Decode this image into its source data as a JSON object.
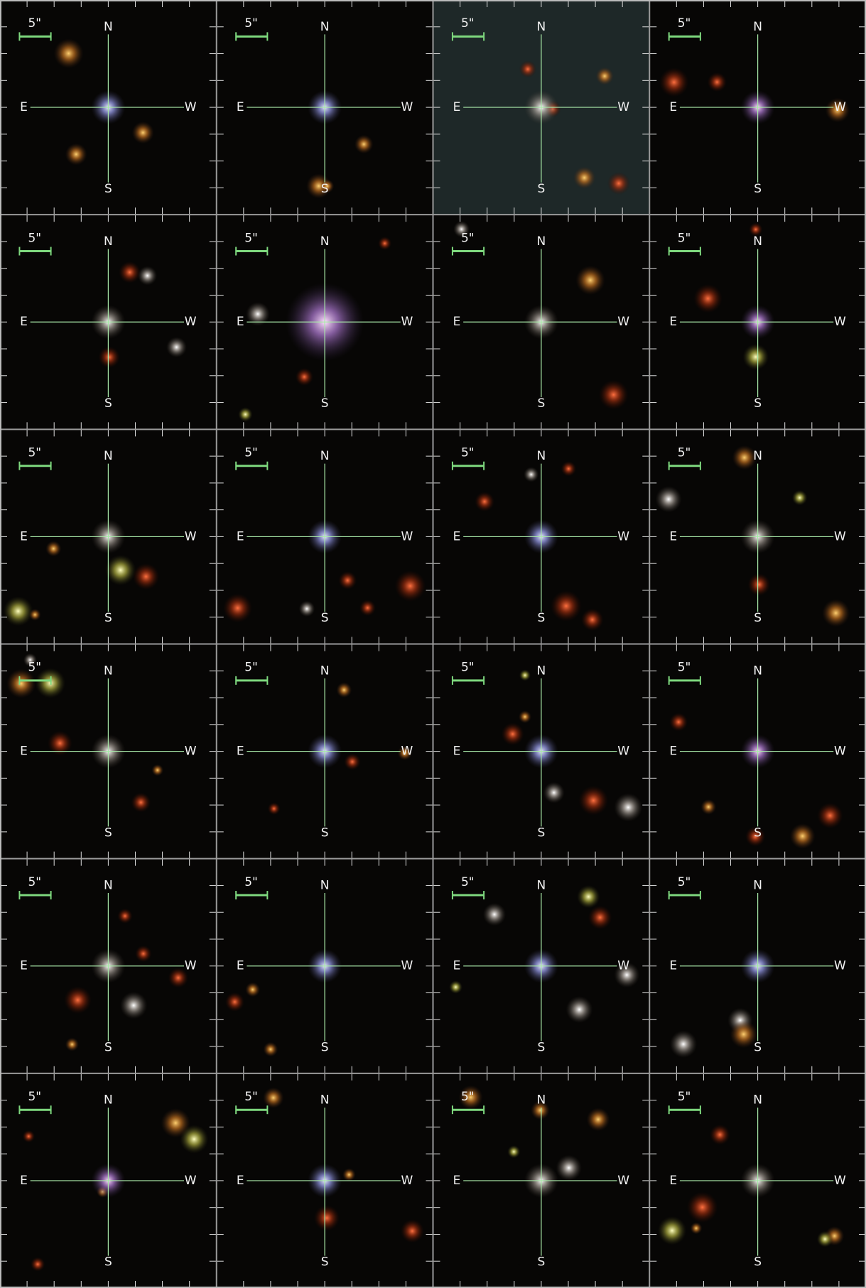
{
  "panels": [
    {
      "scale": "5\"",
      "north": "N",
      "east": "E",
      "west": "W",
      "south": "S"
    },
    {
      "scale": "5\"",
      "north": "N",
      "east": "E",
      "west": "W",
      "south": "S"
    },
    {
      "scale": "5\"",
      "north": "N",
      "east": "E",
      "west": "W",
      "south": "S"
    },
    {
      "scale": "5\"",
      "north": "N",
      "east": "E",
      "west": "W",
      "south": "S"
    },
    {
      "scale": "5\"",
      "north": "N",
      "east": "E",
      "west": "W",
      "south": "S"
    },
    {
      "scale": "5\"",
      "north": "N",
      "east": "E",
      "west": "W",
      "south": "S"
    },
    {
      "scale": "5\"",
      "north": "N",
      "east": "E",
      "west": "W",
      "south": "S"
    },
    {
      "scale": "5\"",
      "north": "N",
      "east": "E",
      "west": "W",
      "south": "S"
    },
    {
      "scale": "5\"",
      "north": "N",
      "east": "E",
      "west": "W",
      "south": "S"
    },
    {
      "scale": "5\"",
      "north": "N",
      "east": "E",
      "west": "W",
      "south": "S"
    },
    {
      "scale": "5\"",
      "north": "N",
      "east": "E",
      "west": "W",
      "south": "S"
    },
    {
      "scale": "5\"",
      "north": "N",
      "east": "E",
      "west": "W",
      "south": "S"
    },
    {
      "scale": "5\"",
      "north": "N",
      "east": "E",
      "west": "W",
      "south": "S"
    },
    {
      "scale": "5\"",
      "north": "N",
      "east": "E",
      "west": "W",
      "south": "S"
    },
    {
      "scale": "5\"",
      "north": "N",
      "east": "E",
      "west": "W",
      "south": "S"
    },
    {
      "scale": "5\"",
      "north": "N",
      "east": "E",
      "west": "W",
      "south": "S"
    },
    {
      "scale": "5\"",
      "north": "N",
      "east": "E",
      "west": "W",
      "south": "S"
    },
    {
      "scale": "5\"",
      "north": "N",
      "east": "E",
      "west": "W",
      "south": "S"
    },
    {
      "scale": "5\"",
      "north": "N",
      "east": "E",
      "west": "W",
      "south": "S"
    },
    {
      "scale": "5\"",
      "north": "N",
      "east": "E",
      "west": "W",
      "south": "S"
    },
    {
      "scale": "5\"",
      "north": "N",
      "east": "E",
      "west": "W",
      "south": "S"
    },
    {
      "scale": "5\"",
      "north": "N",
      "east": "E",
      "west": "W",
      "south": "S"
    },
    {
      "scale": "5\"",
      "north": "N",
      "east": "E",
      "west": "W",
      "south": "S"
    },
    {
      "scale": "5\"",
      "north": "N",
      "east": "E",
      "west": "W",
      "south": "S"
    }
  ]
}
